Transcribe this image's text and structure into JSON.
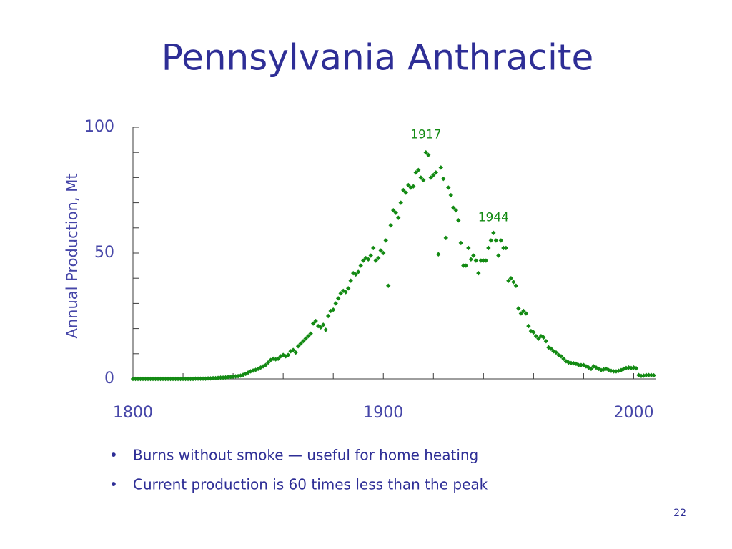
{
  "chart_data": {
    "type": "scatter",
    "title": "Pennsylvania Anthracite",
    "y_label": "Annual Production, Mt",
    "color": "#138a13",
    "xlim": [
      1800,
      2009
    ],
    "ylim": [
      0,
      100
    ],
    "xticks": [
      1800,
      1900,
      2000
    ],
    "yticks": [
      0,
      50,
      100
    ],
    "x_minor_ticks": [
      1820,
      1840,
      1860,
      1880,
      1920,
      1940,
      1960,
      1980
    ],
    "y_minor_ticks": [
      10,
      20,
      30,
      40,
      60,
      70,
      80,
      90
    ],
    "annotations": [
      {
        "text": "1917",
        "x": 1917,
        "y": 97
      },
      {
        "text": "1944",
        "x": 1944,
        "y": 64
      }
    ],
    "x": [
      1800,
      1801,
      1802,
      1803,
      1804,
      1805,
      1806,
      1807,
      1808,
      1809,
      1810,
      1811,
      1812,
      1813,
      1814,
      1815,
      1816,
      1817,
      1818,
      1819,
      1820,
      1821,
      1822,
      1823,
      1824,
      1825,
      1826,
      1827,
      1828,
      1829,
      1830,
      1831,
      1832,
      1833,
      1834,
      1835,
      1836,
      1837,
      1838,
      1839,
      1840,
      1841,
      1842,
      1843,
      1844,
      1845,
      1846,
      1847,
      1848,
      1849,
      1850,
      1851,
      1852,
      1853,
      1854,
      1855,
      1856,
      1857,
      1858,
      1859,
      1860,
      1861,
      1862,
      1863,
      1864,
      1865,
      1866,
      1867,
      1868,
      1869,
      1870,
      1871,
      1872,
      1873,
      1874,
      1875,
      1876,
      1877,
      1878,
      1879,
      1880,
      1881,
      1882,
      1883,
      1884,
      1885,
      1886,
      1887,
      1888,
      1889,
      1890,
      1891,
      1892,
      1893,
      1894,
      1895,
      1896,
      1897,
      1898,
      1899,
      1900,
      1901,
      1902,
      1903,
      1904,
      1905,
      1906,
      1907,
      1908,
      1909,
      1910,
      1911,
      1912,
      1913,
      1914,
      1915,
      1916,
      1917,
      1918,
      1919,
      1920,
      1921,
      1922,
      1923,
      1924,
      1925,
      1926,
      1927,
      1928,
      1929,
      1930,
      1931,
      1932,
      1933,
      1934,
      1935,
      1936,
      1937,
      1938,
      1939,
      1940,
      1941,
      1942,
      1943,
      1944,
      1945,
      1946,
      1947,
      1948,
      1949,
      1950,
      1951,
      1952,
      1953,
      1954,
      1955,
      1956,
      1957,
      1958,
      1959,
      1960,
      1961,
      1962,
      1963,
      1964,
      1965,
      1966,
      1967,
      1968,
      1969,
      1970,
      1971,
      1972,
      1973,
      1974,
      1975,
      1976,
      1977,
      1978,
      1979,
      1980,
      1981,
      1982,
      1983,
      1984,
      1985,
      1986,
      1987,
      1988,
      1989,
      1990,
      1991,
      1992,
      1993,
      1994,
      1995,
      1996,
      1997,
      1998,
      1999,
      2000,
      2001,
      2002,
      2003,
      2004,
      2005,
      2006,
      2007,
      2008
    ],
    "values": [
      0,
      0,
      0,
      0,
      0,
      0,
      0,
      0,
      0,
      0,
      0,
      0,
      0,
      0,
      0,
      0,
      0,
      0,
      0,
      0,
      0,
      0,
      0,
      0,
      0,
      0.1,
      0.1,
      0.1,
      0.1,
      0.1,
      0.2,
      0.2,
      0.3,
      0.3,
      0.4,
      0.5,
      0.5,
      0.6,
      0.7,
      0.8,
      0.9,
      1.0,
      1.1,
      1.3,
      1.6,
      2.0,
      2.5,
      3.0,
      3.3,
      3.6,
      4.0,
      4.5,
      5.0,
      5.5,
      6.5,
      7.5,
      8.0,
      7.8,
      8.0,
      9.0,
      9.5,
      9.0,
      9.5,
      11.0,
      11.5,
      10.5,
      13.0,
      14.0,
      15.0,
      16.0,
      17.0,
      18.0,
      22.0,
      23.0,
      21.0,
      20.5,
      21.5,
      19.5,
      25.0,
      27.0,
      27.5,
      30.0,
      32.0,
      34.0,
      35.0,
      34.5,
      36.0,
      39.0,
      42.0,
      41.5,
      42.5,
      45.0,
      47.0,
      48.0,
      47.5,
      49.0,
      52.0,
      47.0,
      48.0,
      51.0,
      50.0,
      55.0,
      37.0,
      61.0,
      67.0,
      66.0,
      64.0,
      70.0,
      75.0,
      74.0,
      77.0,
      76.0,
      76.5,
      82.0,
      83.0,
      80.0,
      79.0,
      90.0,
      89.0,
      80.0,
      81.0,
      82.0,
      49.5,
      84.0,
      79.5,
      56.0,
      76.0,
      73.0,
      68.0,
      67.0,
      63.0,
      54.0,
      45.0,
      45.0,
      52.0,
      47.5,
      49.0,
      47.0,
      42.0,
      47.0,
      47.0,
      47.0,
      52.0,
      55.0,
      58.0,
      55.0,
      49.0,
      55.0,
      52.0,
      52.0,
      39.0,
      40.0,
      38.5,
      37.0,
      28.0,
      26.0,
      27.0,
      26.0,
      21.0,
      19.0,
      18.5,
      17.0,
      16.0,
      17.0,
      16.5,
      15.0,
      12.5,
      12.0,
      11.0,
      10.5,
      9.5,
      9.0,
      8.0,
      7.0,
      6.5,
      6.3,
      6.2,
      6.0,
      5.5,
      5.5,
      5.5,
      5.0,
      4.5,
      4.0,
      5.0,
      4.5,
      4.0,
      3.5,
      3.8,
      4.0,
      3.5,
      3.2,
      3.0,
      3.0,
      3.2,
      3.5,
      4.0,
      4.3,
      4.5,
      4.3,
      4.5,
      4.2,
      1.5,
      1.2,
      1.3,
      1.5,
      1.5,
      1.5,
      1.4
    ]
  },
  "bullets": [
    "Burns without smoke — useful for home heating",
    "Current production is 60 times less than the peak"
  ],
  "slide_number": "22"
}
